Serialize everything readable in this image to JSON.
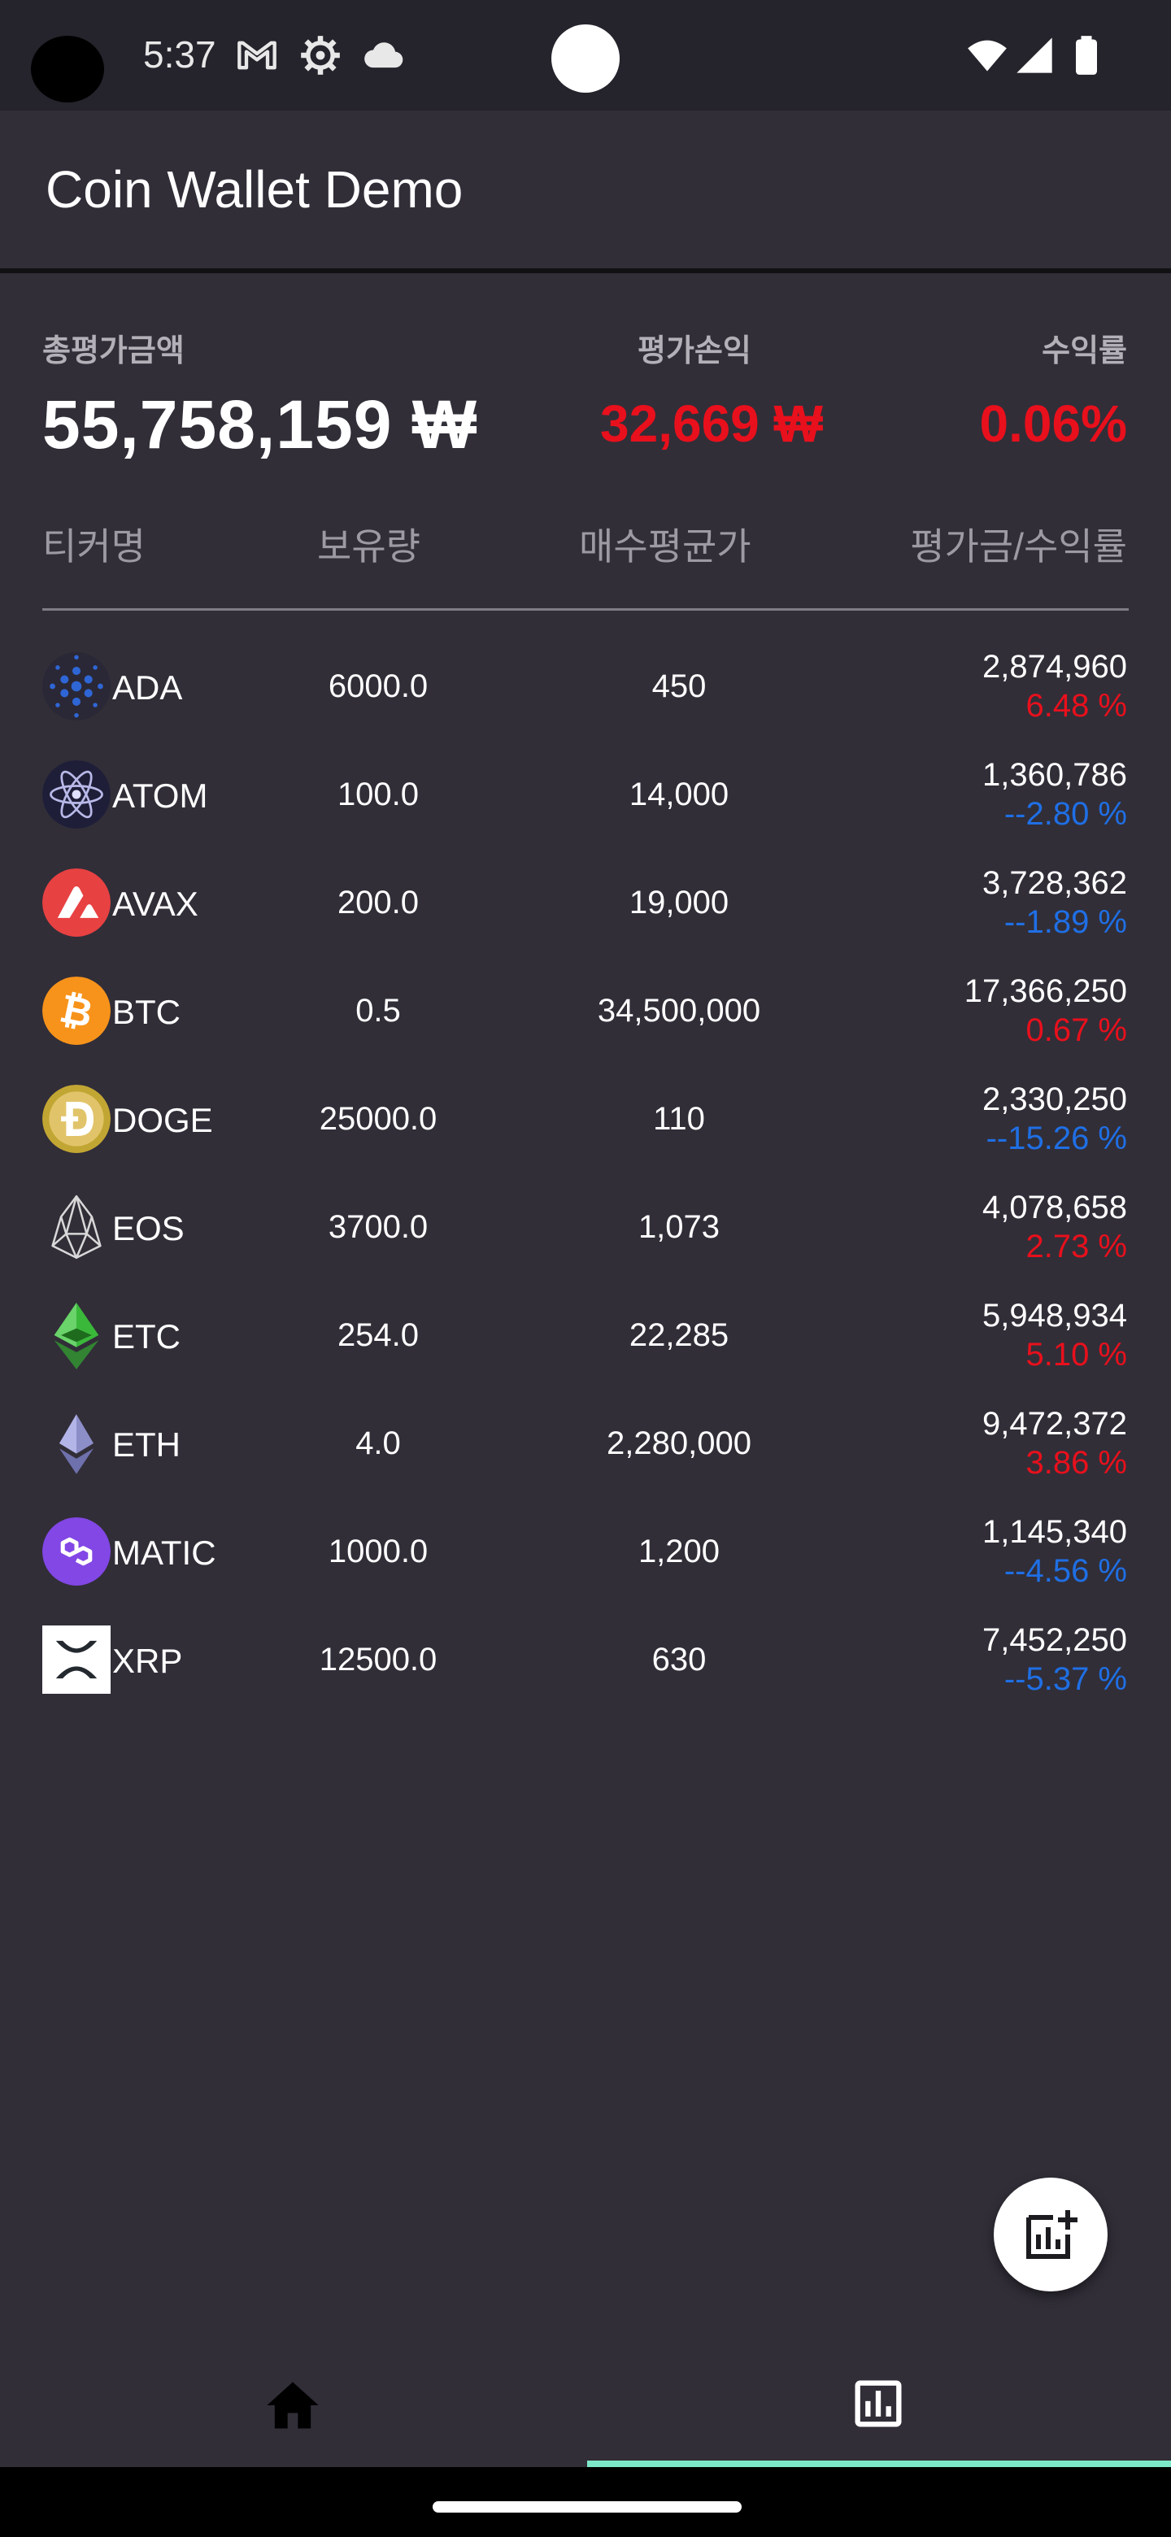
{
  "status_bar": {
    "time": "5:37",
    "icons": [
      "gmail-icon",
      "settings-gear-icon",
      "cloud-icon",
      "wifi-icon",
      "signal-icon",
      "battery-icon"
    ]
  },
  "app_bar": {
    "title": "Coin Wallet Demo"
  },
  "summary": {
    "total_label": "총평가금액",
    "total_value": "55,758,159 ₩",
    "pl_label": "평가손익",
    "pl_value": "32,669 ₩",
    "rate_label": "수익률",
    "rate_value": "0.06%"
  },
  "columns": {
    "ticker": "티커명",
    "qty": "보유량",
    "avg": "매수평균가",
    "eval": "평가금/수익률"
  },
  "colors": {
    "background": "#312e38",
    "positive": "#e8101c",
    "negative": "#1f6fe5",
    "indicator": "#7de8c8"
  },
  "coins": [
    {
      "ticker": "ADA",
      "qty": "6000.0",
      "avg": "450",
      "eval": "2,874,960",
      "rate": "6.48 %",
      "trend": "up",
      "icon": "cardano-icon"
    },
    {
      "ticker": "ATOM",
      "qty": "100.0",
      "avg": "14,000",
      "eval": "1,360,786",
      "rate": "--2.80 %",
      "trend": "down",
      "icon": "cosmos-icon"
    },
    {
      "ticker": "AVAX",
      "qty": "200.0",
      "avg": "19,000",
      "eval": "3,728,362",
      "rate": "--1.89 %",
      "trend": "down",
      "icon": "avalanche-icon"
    },
    {
      "ticker": "BTC",
      "qty": "0.5",
      "avg": "34,500,000",
      "eval": "17,366,250",
      "rate": "0.67 %",
      "trend": "up",
      "icon": "bitcoin-icon"
    },
    {
      "ticker": "DOGE",
      "qty": "25000.0",
      "avg": "110",
      "eval": "2,330,250",
      "rate": "--15.26 %",
      "trend": "down",
      "icon": "dogecoin-icon"
    },
    {
      "ticker": "EOS",
      "qty": "3700.0",
      "avg": "1,073",
      "eval": "4,078,658",
      "rate": "2.73 %",
      "trend": "up",
      "icon": "eos-icon"
    },
    {
      "ticker": "ETC",
      "qty": "254.0",
      "avg": "22,285",
      "eval": "5,948,934",
      "rate": "5.10 %",
      "trend": "up",
      "icon": "ethereum-classic-icon"
    },
    {
      "ticker": "ETH",
      "qty": "4.0",
      "avg": "2,280,000",
      "eval": "9,472,372",
      "rate": "3.86 %",
      "trend": "up",
      "icon": "ethereum-icon"
    },
    {
      "ticker": "MATIC",
      "qty": "1000.0",
      "avg": "1,200",
      "eval": "1,145,340",
      "rate": "--4.56 %",
      "trend": "down",
      "icon": "polygon-icon"
    },
    {
      "ticker": "XRP",
      "qty": "12500.0",
      "avg": "630",
      "eval": "7,452,250",
      "rate": "--5.37 %",
      "trend": "down",
      "icon": "xrp-icon"
    }
  ],
  "fab": {
    "icon": "add-chart-icon"
  },
  "bottom_nav": {
    "items": [
      {
        "name": "home",
        "icon": "home-icon"
      },
      {
        "name": "chart",
        "icon": "chart-icon",
        "selected": true
      }
    ]
  }
}
